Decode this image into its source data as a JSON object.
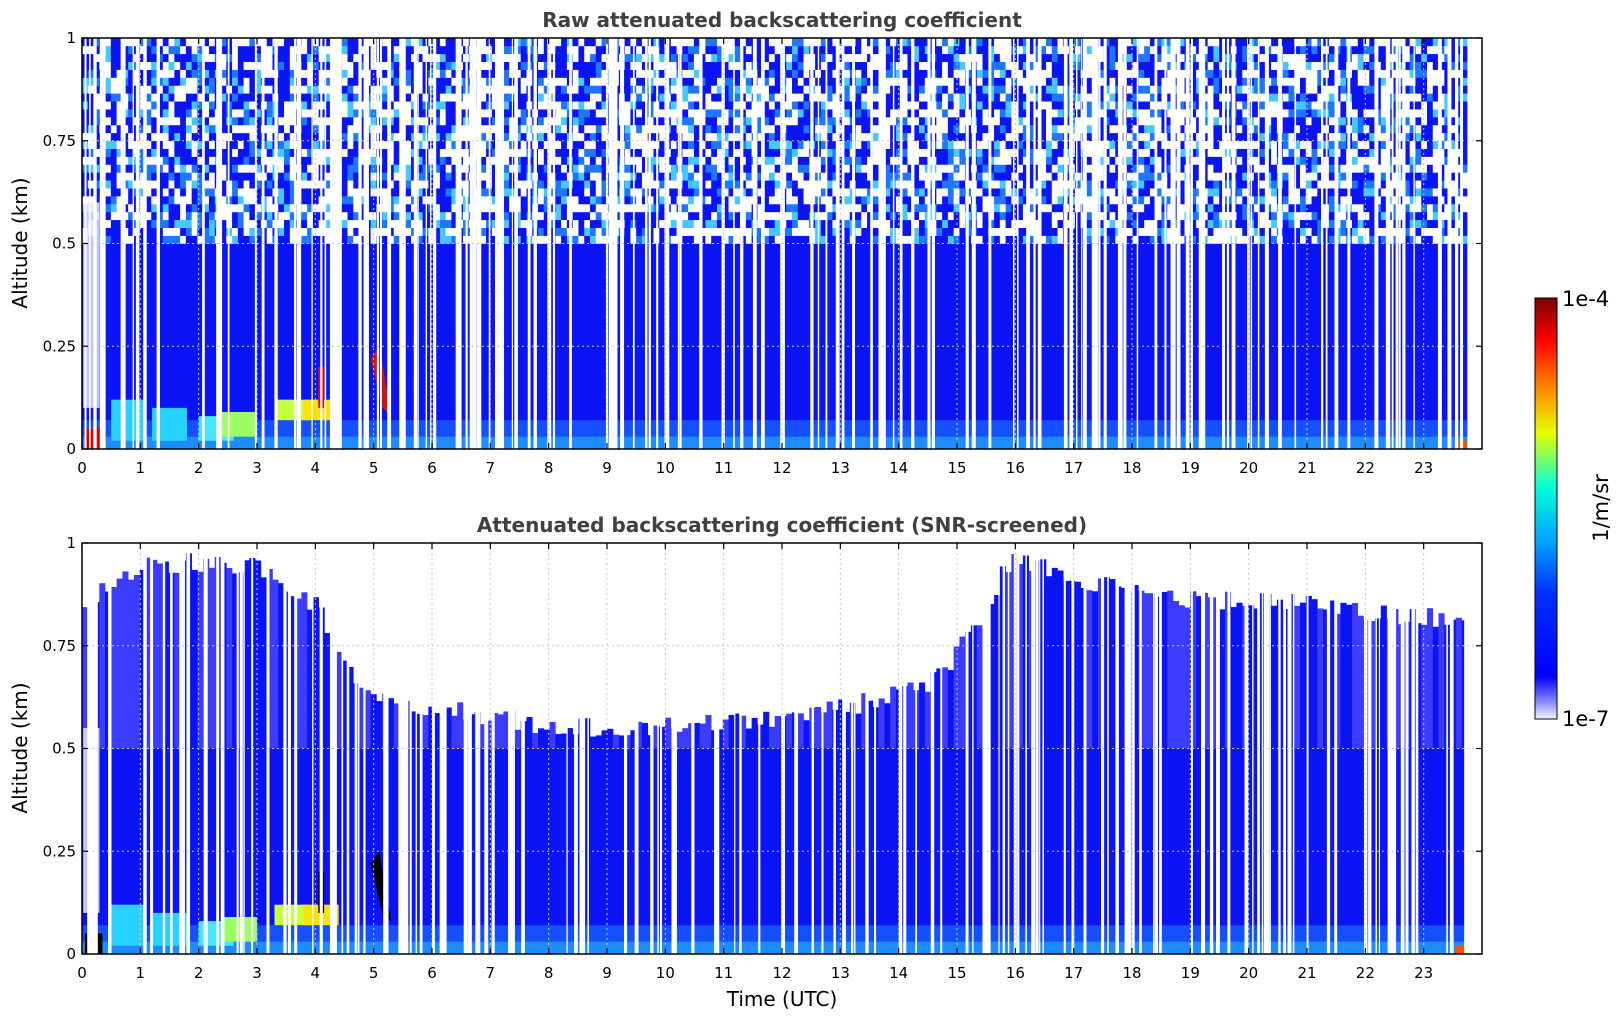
{
  "chart_data": [
    {
      "type": "heatmap",
      "title": "Raw attenuated backscattering coefficient",
      "xlabel": "",
      "ylabel": "Altitude (km)",
      "xlim": [
        0,
        24
      ],
      "ylim": [
        0,
        1
      ],
      "x_ticks": [
        "0",
        "1",
        "2",
        "3",
        "4",
        "5",
        "6",
        "7",
        "8",
        "9",
        "10",
        "11",
        "12",
        "13",
        "14",
        "15",
        "16",
        "17",
        "18",
        "19",
        "20",
        "21",
        "22",
        "23"
      ],
      "y_ticks": [
        "0",
        "0.25",
        "0.5",
        "0.75",
        "1"
      ],
      "grid": true,
      "data_end_hour": 23.75,
      "description_values": {
        "background_level": "1e-6",
        "aerosol_layer_top_km": 0.5,
        "noise_above_km": 0.5
      }
    },
    {
      "type": "heatmap",
      "title": "Attenuated backscattering coefficient (SNR-screened)",
      "xlabel": "Time (UTC)",
      "ylabel": "Altitude (km)",
      "xlim": [
        0,
        24
      ],
      "ylim": [
        0,
        1
      ],
      "x_ticks": [
        "0",
        "1",
        "2",
        "3",
        "4",
        "5",
        "6",
        "7",
        "8",
        "9",
        "10",
        "11",
        "12",
        "13",
        "14",
        "15",
        "16",
        "17",
        "18",
        "19",
        "20",
        "21",
        "22",
        "23"
      ],
      "y_ticks": [
        "0",
        "0.25",
        "0.5",
        "0.75",
        "1"
      ],
      "grid": true,
      "data_end_hour": 23.75,
      "screened_top_km": [
        [
          0,
          0.85
        ],
        [
          1,
          0.95
        ],
        [
          2,
          0.95
        ],
        [
          3,
          0.95
        ],
        [
          4,
          0.85
        ],
        [
          4.6,
          0.7
        ],
        [
          5,
          0.62
        ],
        [
          6,
          0.6
        ],
        [
          7,
          0.58
        ],
        [
          8,
          0.55
        ],
        [
          9,
          0.55
        ],
        [
          10,
          0.55
        ],
        [
          11,
          0.56
        ],
        [
          12,
          0.58
        ],
        [
          13,
          0.6
        ],
        [
          14,
          0.63
        ],
        [
          14.8,
          0.68
        ],
        [
          15.5,
          0.85
        ],
        [
          16,
          0.97
        ],
        [
          17,
          0.92
        ],
        [
          18,
          0.88
        ],
        [
          19,
          0.86
        ],
        [
          20,
          0.86
        ],
        [
          21,
          0.85
        ],
        [
          22,
          0.83
        ],
        [
          23,
          0.82
        ],
        [
          23.75,
          0.82
        ]
      ]
    }
  ],
  "colorbar": {
    "max_label": "1e-4",
    "min_label": "1e-7",
    "units": "1/m/sr",
    "colors": [
      "#eeeeff",
      "#0000ff",
      "#00c8ff",
      "#ffff00",
      "#ff3000",
      "#800000"
    ]
  }
}
